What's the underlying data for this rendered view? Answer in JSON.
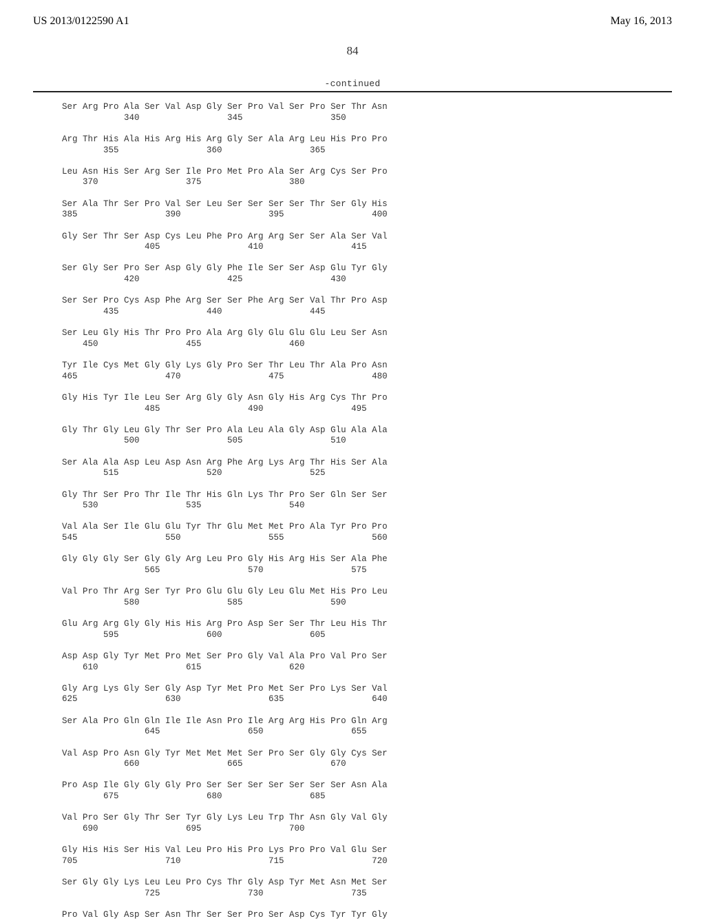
{
  "header": {
    "publication_number": "US 2013/0122590 A1",
    "pub_date": "May 16, 2013"
  },
  "page_number": "84",
  "continued_label": "-continued",
  "sequence": {
    "rows": [
      {
        "aa": "Ser Arg Pro Ala Ser Val Asp Gly Ser Pro Val Ser Pro Ser Thr Asn",
        "pos": "            340                 345                 350"
      },
      {
        "aa": "Arg Thr His Ala His Arg His Arg Gly Ser Ala Arg Leu His Pro Pro",
        "pos": "        355                 360                 365"
      },
      {
        "aa": "Leu Asn His Ser Arg Ser Ile Pro Met Pro Ala Ser Arg Cys Ser Pro",
        "pos": "    370                 375                 380"
      },
      {
        "aa": "Ser Ala Thr Ser Pro Val Ser Leu Ser Ser Ser Ser Thr Ser Gly His",
        "pos": "385                 390                 395                 400"
      },
      {
        "aa": "Gly Ser Thr Ser Asp Cys Leu Phe Pro Arg Arg Ser Ser Ala Ser Val",
        "pos": "                405                 410                 415"
      },
      {
        "aa": "Ser Gly Ser Pro Ser Asp Gly Gly Phe Ile Ser Ser Asp Glu Tyr Gly",
        "pos": "            420                 425                 430"
      },
      {
        "aa": "Ser Ser Pro Cys Asp Phe Arg Ser Ser Phe Arg Ser Val Thr Pro Asp",
        "pos": "        435                 440                 445"
      },
      {
        "aa": "Ser Leu Gly His Thr Pro Pro Ala Arg Gly Glu Glu Glu Leu Ser Asn",
        "pos": "    450                 455                 460"
      },
      {
        "aa": "Tyr Ile Cys Met Gly Gly Lys Gly Pro Ser Thr Leu Thr Ala Pro Asn",
        "pos": "465                 470                 475                 480"
      },
      {
        "aa": "Gly His Tyr Ile Leu Ser Arg Gly Gly Asn Gly His Arg Cys Thr Pro",
        "pos": "                485                 490                 495"
      },
      {
        "aa": "Gly Thr Gly Leu Gly Thr Ser Pro Ala Leu Ala Gly Asp Glu Ala Ala",
        "pos": "            500                 505                 510"
      },
      {
        "aa": "Ser Ala Ala Asp Leu Asp Asn Arg Phe Arg Lys Arg Thr His Ser Ala",
        "pos": "        515                 520                 525"
      },
      {
        "aa": "Gly Thr Ser Pro Thr Ile Thr His Gln Lys Thr Pro Ser Gln Ser Ser",
        "pos": "    530                 535                 540"
      },
      {
        "aa": "Val Ala Ser Ile Glu Glu Tyr Thr Glu Met Met Pro Ala Tyr Pro Pro",
        "pos": "545                 550                 555                 560"
      },
      {
        "aa": "Gly Gly Gly Ser Gly Gly Arg Leu Pro Gly His Arg His Ser Ala Phe",
        "pos": "                565                 570                 575"
      },
      {
        "aa": "Val Pro Thr Arg Ser Tyr Pro Glu Glu Gly Leu Glu Met His Pro Leu",
        "pos": "            580                 585                 590"
      },
      {
        "aa": "Glu Arg Arg Gly Gly His His Arg Pro Asp Ser Ser Thr Leu His Thr",
        "pos": "        595                 600                 605"
      },
      {
        "aa": "Asp Asp Gly Tyr Met Pro Met Ser Pro Gly Val Ala Pro Val Pro Ser",
        "pos": "    610                 615                 620"
      },
      {
        "aa": "Gly Arg Lys Gly Ser Gly Asp Tyr Met Pro Met Ser Pro Lys Ser Val",
        "pos": "625                 630                 635                 640"
      },
      {
        "aa": "Ser Ala Pro Gln Gln Ile Ile Asn Pro Ile Arg Arg His Pro Gln Arg",
        "pos": "                645                 650                 655"
      },
      {
        "aa": "Val Asp Pro Asn Gly Tyr Met Met Met Ser Pro Ser Gly Gly Cys Ser",
        "pos": "            660                 665                 670"
      },
      {
        "aa": "Pro Asp Ile Gly Gly Gly Pro Ser Ser Ser Ser Ser Ser Ser Asn Ala",
        "pos": "        675                 680                 685"
      },
      {
        "aa": "Val Pro Ser Gly Thr Ser Tyr Gly Lys Leu Trp Thr Asn Gly Val Gly",
        "pos": "    690                 695                 700"
      },
      {
        "aa": "Gly His His Ser His Val Leu Pro His Pro Lys Pro Pro Val Glu Ser",
        "pos": "705                 710                 715                 720"
      },
      {
        "aa": "Ser Gly Gly Lys Leu Leu Pro Cys Thr Gly Asp Tyr Met Asn Met Ser",
        "pos": "                725                 730                 735"
      },
      {
        "aa": "Pro Val Gly Asp Ser Asn Thr Ser Ser Pro Ser Asp Cys Tyr Tyr Gly",
        "pos": ""
      }
    ]
  }
}
